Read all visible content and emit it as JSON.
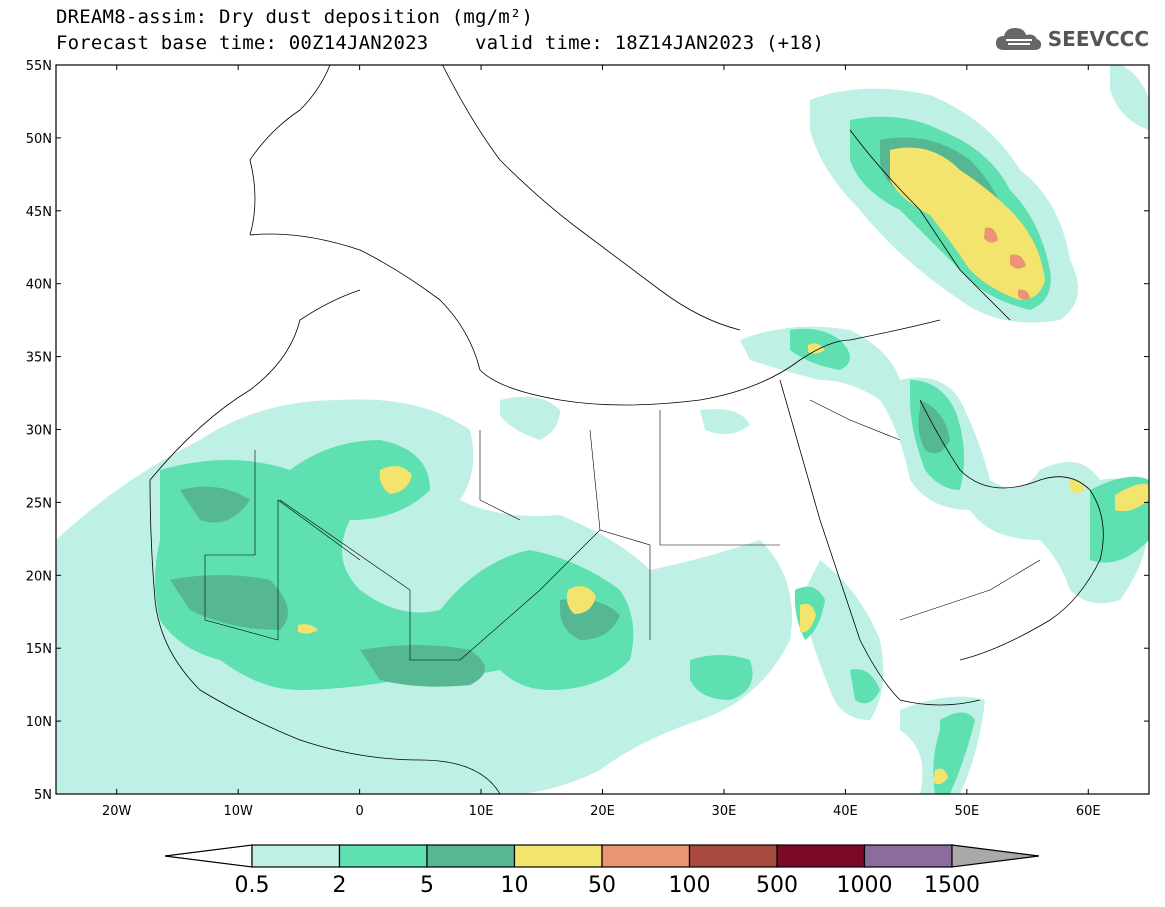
{
  "title": {
    "line1": "DREAM8-assim: Dry dust deposition (mg/m²)",
    "line2": "Forecast base time: 00Z14JAN2023    valid time: 18Z14JAN2023 (+18)"
  },
  "logo": {
    "text": "SEEVCCC",
    "icon": "cloud-icon"
  },
  "map": {
    "lon_range": [
      -25,
      65
    ],
    "lat_range": [
      5,
      55
    ],
    "lat_ticks": [
      "5N",
      "10N",
      "15N",
      "20N",
      "25N",
      "30N",
      "35N",
      "40N",
      "45N",
      "50N",
      "55N"
    ],
    "lon_ticks": [
      "20W",
      "10W",
      "0",
      "10E",
      "20E",
      "30E",
      "40E",
      "50E",
      "60E"
    ]
  },
  "colorbar": {
    "labels": [
      "0.5",
      "2",
      "5",
      "10",
      "50",
      "100",
      "500",
      "1000",
      "1500"
    ],
    "colors": [
      "#bff0e5",
      "#5ee0b0",
      "#56b893",
      "#f2e46c",
      "#ea9473",
      "#a94a3e",
      "#7a0a26",
      "#8c6b9f",
      "#a9a9a9"
    ]
  }
}
